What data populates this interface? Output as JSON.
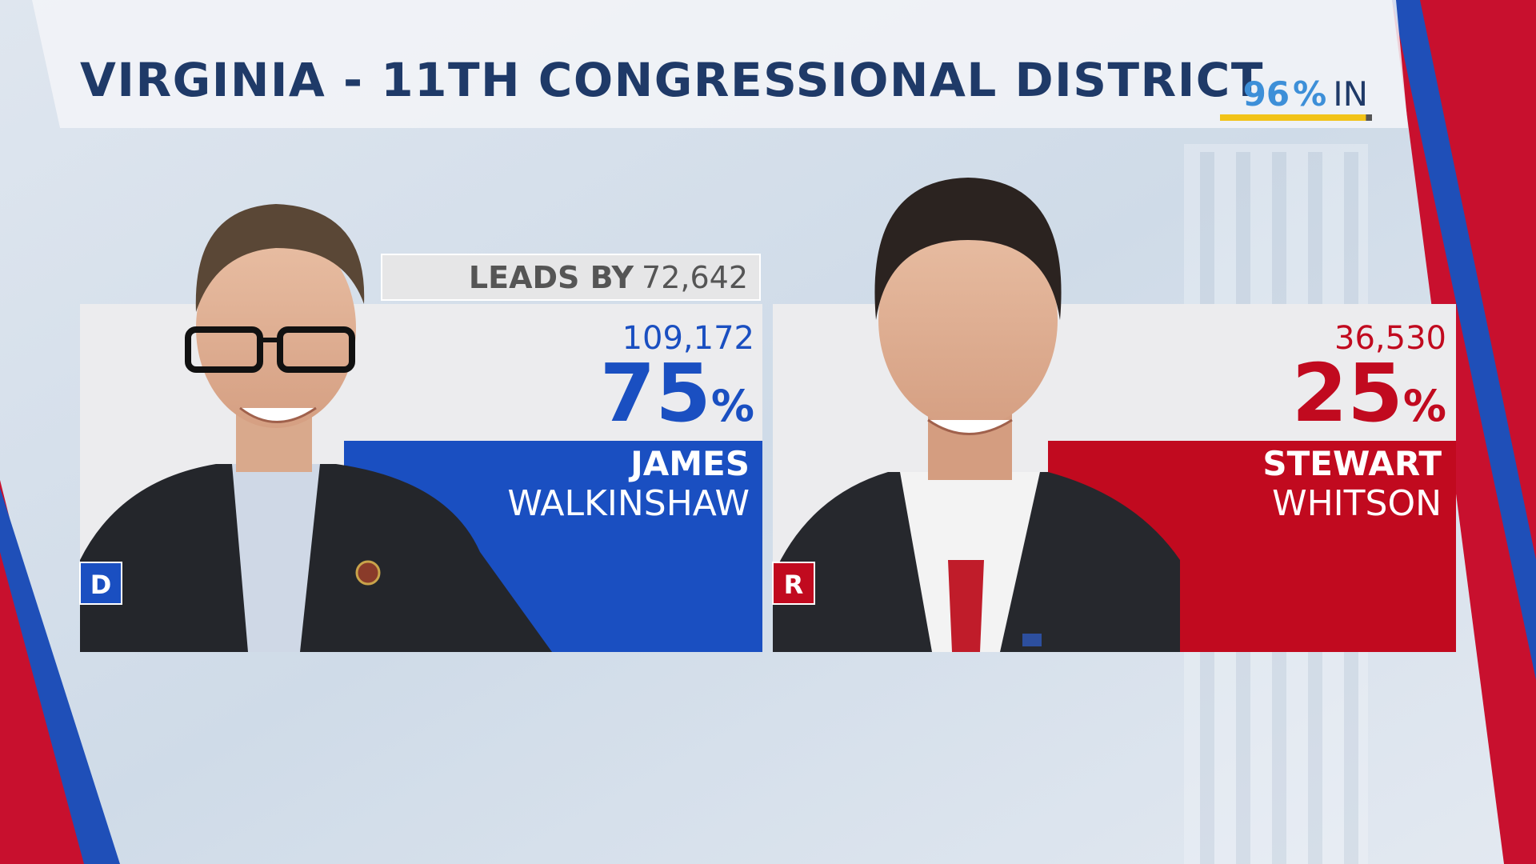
{
  "header": {
    "title": "VIRGINIA - 11TH CONGRESSIONAL DISTRICT",
    "reporting": {
      "percent": 96,
      "sign": "%",
      "suffix": "IN"
    }
  },
  "lead": {
    "label": "LEADS BY",
    "margin": "72,642"
  },
  "candidates": [
    {
      "party": "D",
      "first_name": "JAMES",
      "last_name": "WALKINSHAW",
      "votes": "109,172",
      "percent": "75",
      "percent_sign": "%"
    },
    {
      "party": "R",
      "first_name": "STEWART",
      "last_name": "WHITSON",
      "votes": "36,530",
      "percent": "25",
      "percent_sign": "%"
    }
  ]
}
